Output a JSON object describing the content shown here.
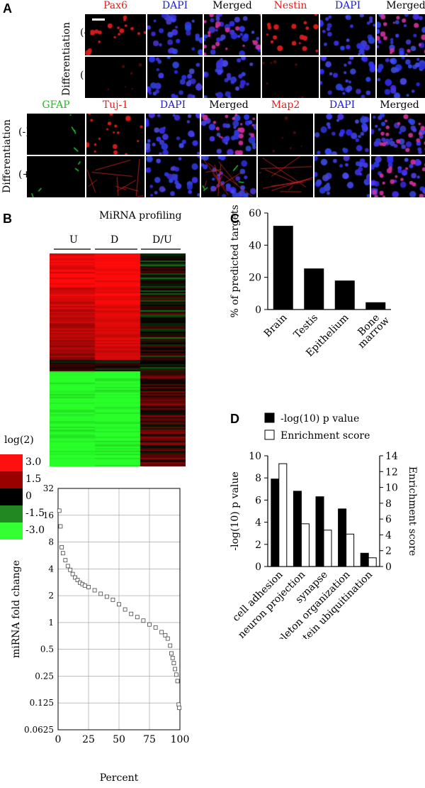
{
  "panel_letters": {
    "a": "A",
    "b": "B",
    "c": "C",
    "d": "D"
  },
  "panel_a": {
    "row_title": "Differentiation",
    "minus": "(-)",
    "plus": "(+)",
    "top_channels": [
      {
        "text": "Pax6",
        "color": "#e02020"
      },
      {
        "text": "DAPI",
        "color": "#2020d0"
      },
      {
        "text": "Merged",
        "color": "#000000"
      },
      {
        "text": "Nestin",
        "color": "#e02020"
      },
      {
        "text": "DAPI",
        "color": "#2020d0"
      },
      {
        "text": "Merged",
        "color": "#000000"
      }
    ],
    "bottom_channels": [
      {
        "text": "GFAP",
        "color": "#22bb22"
      },
      {
        "text": "Tuj-1",
        "color": "#e02020"
      },
      {
        "text": "DAPI",
        "color": "#2020d0"
      },
      {
        "text": "Merged",
        "color": "#000000"
      },
      {
        "text": "Map2",
        "color": "#e02020"
      },
      {
        "text": "DAPI",
        "color": "#2020d0"
      },
      {
        "text": "Merged",
        "color": "#000000"
      }
    ]
  },
  "panel_b": {
    "title": "MiRNA profiling",
    "columns": [
      "U",
      "D",
      "D/U"
    ],
    "legend_title": "log(2)",
    "legend": [
      {
        "label": "3.0",
        "color": "#ff1010"
      },
      {
        "label": "1.5",
        "color": "#990000"
      },
      {
        "label": "0",
        "color": "#000000"
      },
      {
        "label": "-1.5",
        "color": "#228822"
      },
      {
        "label": "-3.0",
        "color": "#33ff33"
      }
    ]
  },
  "chart_data": [
    {
      "type": "line",
      "panel": "B",
      "xlabel": "Percent",
      "ylabel": "miRNA fold change",
      "yscale": "log2",
      "xlim": [
        0,
        100
      ],
      "ylim": [
        0.0625,
        32
      ],
      "x_ticks": [
        "0",
        "25",
        "50",
        "75",
        "100"
      ],
      "y_ticks": [
        "0.0625",
        "0.125",
        "0.25",
        "0.5",
        "1",
        "2",
        "4",
        "8",
        "16",
        "32"
      ],
      "grid": true,
      "x": [
        1,
        2,
        3,
        4,
        6,
        8,
        10,
        12,
        14,
        16,
        18,
        20,
        22,
        25,
        30,
        35,
        40,
        45,
        50,
        55,
        60,
        65,
        70,
        75,
        80,
        85,
        88,
        90,
        92,
        93,
        94,
        95,
        96,
        97,
        98,
        99,
        99.5
      ],
      "values": [
        18,
        12,
        7,
        6,
        5,
        4.3,
        3.9,
        3.5,
        3.2,
        3.0,
        2.8,
        2.7,
        2.6,
        2.5,
        2.3,
        2.1,
        1.95,
        1.8,
        1.6,
        1.4,
        1.25,
        1.15,
        1.05,
        0.95,
        0.88,
        0.78,
        0.72,
        0.66,
        0.55,
        0.45,
        0.4,
        0.35,
        0.3,
        0.26,
        0.22,
        0.12,
        0.11
      ]
    },
    {
      "type": "bar",
      "panel": "C",
      "ylabel": "% of predicted targets",
      "categories": [
        "Brain",
        "Testis",
        "Epithelium",
        "Bone marrow"
      ],
      "values": [
        52,
        25.5,
        18,
        4.5
      ],
      "ylim": [
        0,
        60
      ],
      "y_ticks": [
        "0",
        "20",
        "40",
        "60"
      ]
    },
    {
      "type": "bar",
      "panel": "D",
      "ylabel": "-log(10) p value",
      "ylabel_right": "Enrichment score",
      "categories": [
        "cell adhesion",
        "neuron projection",
        "synapse",
        "cytoskeleton organization",
        "protein ubiquitination"
      ],
      "series": [
        {
          "name": "-log(10) p value",
          "values": [
            7.9,
            6.8,
            6.3,
            5.2,
            1.2
          ],
          "axis": "left",
          "color": "#000000"
        },
        {
          "name": "Enrichment score",
          "values": [
            13,
            5.4,
            4.6,
            4.1,
            1.1
          ],
          "axis": "right",
          "color": "#ffffff"
        }
      ],
      "ylim": [
        0,
        10
      ],
      "ylim_right": [
        0,
        14
      ],
      "y_ticks": [
        "0",
        "2",
        "4",
        "6",
        "8",
        "10"
      ],
      "y_ticks_right": [
        "0",
        "2",
        "4",
        "6",
        "8",
        "10",
        "12",
        "14"
      ],
      "legend_placement": "top"
    }
  ]
}
